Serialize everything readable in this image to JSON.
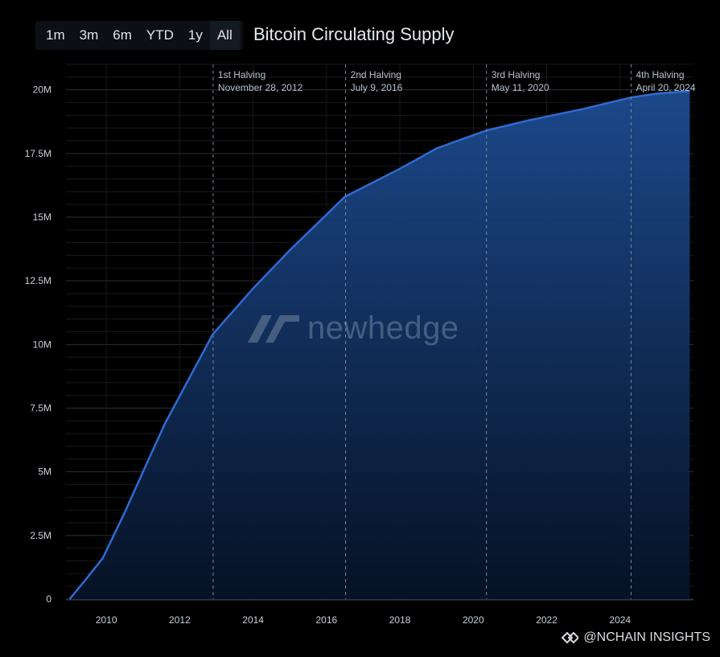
{
  "toolbar": {
    "ranges": [
      "1m",
      "3m",
      "6m",
      "YTD",
      "1y",
      "All"
    ]
  },
  "title": "Bitcoin Circulating Supply",
  "watermark": "newhedge",
  "footer": "@NCHAIN INSIGHTS",
  "colors": {
    "line": "#2f6bd1",
    "fill_top": "#1d4c91",
    "background": "#000000"
  },
  "chart_data": {
    "type": "area",
    "title": "Bitcoin Circulating Supply",
    "x": [
      2009.0,
      2009.4,
      2009.9,
      2010.5,
      2011.0,
      2011.6,
      2012.9,
      2014.0,
      2015.0,
      2016.5,
      2018.0,
      2019.0,
      2020.35,
      2021.5,
      2023.0,
      2024.3,
      2025.0,
      2025.9
    ],
    "y": [
      0,
      0.7,
      1.6,
      3.4,
      5.0,
      6.9,
      10.4,
      12.2,
      13.7,
      15.8,
      16.9,
      17.7,
      18.4,
      18.8,
      19.25,
      19.7,
      19.85,
      19.95
    ],
    "y_unit": "M",
    "xlim": [
      2008.9,
      2026.0
    ],
    "ylim": [
      0,
      21
    ],
    "y_ticks": [
      "0",
      "2.5M",
      "5M",
      "7.5M",
      "10M",
      "12.5M",
      "15M",
      "17.5M",
      "20M"
    ],
    "y_tick_values": [
      0,
      2.5,
      5,
      7.5,
      10,
      12.5,
      15,
      17.5,
      20
    ],
    "x_ticks": [
      "2010",
      "2012",
      "2014",
      "2016",
      "2018",
      "2020",
      "2022",
      "2024"
    ],
    "x_tick_values": [
      2010,
      2012,
      2014,
      2016,
      2018,
      2020,
      2022,
      2024
    ],
    "grid": true,
    "annotations": [
      {
        "name": "1st Halving",
        "date": "November 28, 2012",
        "x": 2012.91
      },
      {
        "name": "2nd Halving",
        "date": "July 9, 2016",
        "x": 2016.52
      },
      {
        "name": "3rd Halving",
        "date": "May 11, 2020",
        "x": 2020.36
      },
      {
        "name": "4th Halving",
        "date": "April 20, 2024",
        "x": 2024.3
      }
    ]
  }
}
